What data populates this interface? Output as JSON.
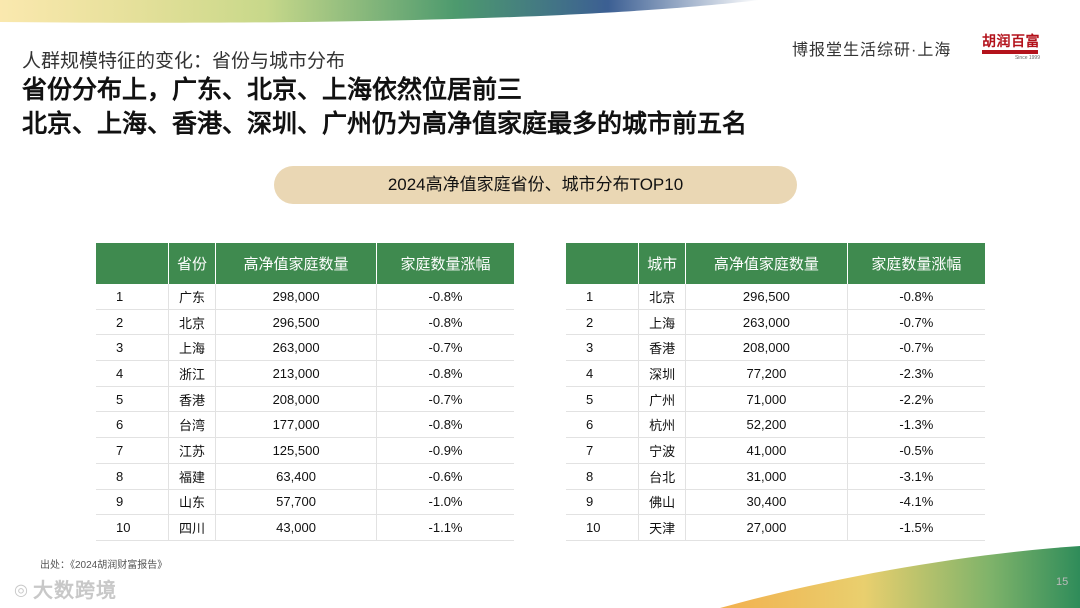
{
  "header": {
    "subtitle": "人群规模特征的变化：省份与城市分布",
    "headline_1": "省份分布上，广东、北京、上海依然位居前三",
    "headline_2": "北京、上海、香港、深圳、广州仍为高净值家庭最多的城市前五名",
    "brand_text": "博报堂生活综研·上海",
    "logo_name": "胡润百富",
    "logo_since": "Since 1999"
  },
  "banner": {
    "title": "2024高净值家庭省份、城市分布TOP10"
  },
  "province_table": {
    "headers": [
      "",
      "省份",
      "高净值家庭数量",
      "家庭数量涨幅"
    ],
    "rows": [
      [
        "1",
        "广东",
        "298,000",
        "-0.8%"
      ],
      [
        "2",
        "北京",
        "296,500",
        "-0.8%"
      ],
      [
        "3",
        "上海",
        "263,000",
        "-0.7%"
      ],
      [
        "4",
        "浙江",
        "213,000",
        "-0.8%"
      ],
      [
        "5",
        "香港",
        "208,000",
        "-0.7%"
      ],
      [
        "6",
        "台湾",
        "177,000",
        "-0.8%"
      ],
      [
        "7",
        "江苏",
        "125,500",
        "-0.9%"
      ],
      [
        "8",
        "福建",
        "63,400",
        "-0.6%"
      ],
      [
        "9",
        "山东",
        "57,700",
        "-1.0%"
      ],
      [
        "10",
        "四川",
        "43,000",
        "-1.1%"
      ]
    ]
  },
  "city_table": {
    "headers": [
      "",
      "城市",
      "高净值家庭数量",
      "家庭数量涨幅"
    ],
    "rows": [
      [
        "1",
        "北京",
        "296,500",
        "-0.8%"
      ],
      [
        "2",
        "上海",
        "263,000",
        "-0.7%"
      ],
      [
        "3",
        "香港",
        "208,000",
        "-0.7%"
      ],
      [
        "4",
        "深圳",
        "77,200",
        "-2.3%"
      ],
      [
        "5",
        "广州",
        "71,000",
        "-2.2%"
      ],
      [
        "6",
        "杭州",
        "52,200",
        "-1.3%"
      ],
      [
        "7",
        "宁波",
        "41,000",
        "-0.5%"
      ],
      [
        "8",
        "台北",
        "31,000",
        "-3.1%"
      ],
      [
        "9",
        "佛山",
        "30,400",
        "-4.1%"
      ],
      [
        "10",
        "天津",
        "27,000",
        "-1.5%"
      ]
    ]
  },
  "footer": {
    "source": "出处：《2024胡润财富报告》",
    "watermark": "大数跨境",
    "watermark_icon": "circle-logo-icon",
    "page_number": "15"
  },
  "colors": {
    "table_header": "#3f8a4f",
    "banner_pill": "#ead7b4",
    "logo_red": "#b3121b"
  }
}
